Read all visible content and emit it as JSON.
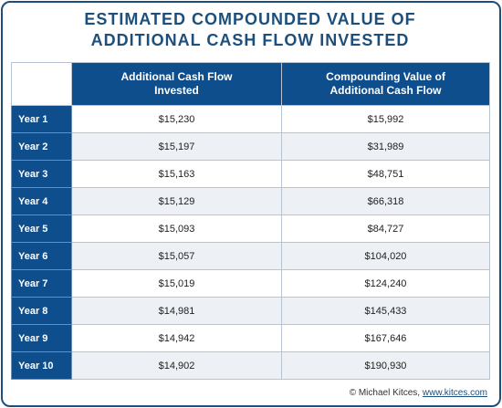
{
  "title": [
    "ESTIMATED COMPOUNDED VALUE OF",
    "ADDITIONAL CASH FLOW INVESTED"
  ],
  "table": {
    "columns": [
      "Additional Cash Flow Invested",
      "Compounding Value of Additional Cash Flow"
    ],
    "rows": [
      [
        "Year 1",
        "$15,230",
        "$15,992"
      ],
      [
        "Year 2",
        "$15,197",
        "$31,989"
      ],
      [
        "Year 3",
        "$15,163",
        "$48,751"
      ],
      [
        "Year 4",
        "$15,129",
        "$66,318"
      ],
      [
        "Year 5",
        "$15,093",
        "$84,727"
      ],
      [
        "Year 6",
        "$15,057",
        "$104,020"
      ],
      [
        "Year 7",
        "$15,019",
        "$124,240"
      ],
      [
        "Year 8",
        "$14,981",
        "$145,433"
      ],
      [
        "Year 9",
        "$14,942",
        "$167,646"
      ],
      [
        "Year 10",
        "$14,902",
        "$190,930"
      ]
    ]
  },
  "footer": {
    "credit": "© Michael Kitces,",
    "link": "www.kitces.com"
  }
}
